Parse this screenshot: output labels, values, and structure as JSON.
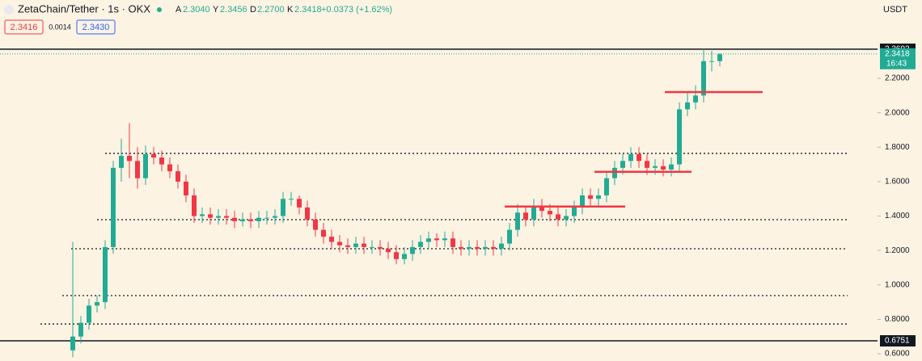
{
  "header": {
    "symbol": "ZetaChain/Tether · 1s · OKX",
    "ohlc": [
      {
        "key": "A",
        "value": "2.3040"
      },
      {
        "key": "Y",
        "value": "2.3456"
      },
      {
        "key": "D",
        "value": "2.2700"
      },
      {
        "key": "K",
        "value": "2.3418"
      }
    ],
    "change": "+0.0373 (+1.62%)",
    "bid": "2.3416",
    "spread": "0.0014",
    "ask": "2.3430",
    "currency": "USDT"
  },
  "chart_data": {
    "type": "candlestick",
    "up_color": "#22ab94",
    "down_color": "#f23645",
    "open": [
      0.62,
      0.7,
      0.78,
      0.88,
      0.9,
      1.22,
      1.68,
      1.75,
      1.72,
      1.62,
      1.76,
      1.74,
      1.7,
      1.66,
      1.6,
      1.52,
      1.4,
      1.41,
      1.39,
      1.4,
      1.39,
      1.37,
      1.38,
      1.37,
      1.39,
      1.39,
      1.4,
      1.5,
      1.5,
      1.45,
      1.38,
      1.32,
      1.28,
      1.25,
      1.23,
      1.22,
      1.24,
      1.22,
      1.22,
      1.21,
      1.19,
      1.15,
      1.18,
      1.22,
      1.25,
      1.27,
      1.26,
      1.27,
      1.22,
      1.21,
      1.22,
      1.21,
      1.22,
      1.21,
      1.24,
      1.32,
      1.42,
      1.38,
      1.46,
      1.43,
      1.41,
      1.38,
      1.4,
      1.45,
      1.52,
      1.5,
      1.52,
      1.62,
      1.68,
      1.72,
      1.76,
      1.72,
      1.68,
      1.69,
      1.67,
      1.7,
      2.02,
      2.06,
      2.1,
      2.3,
      2.3
    ],
    "high": [
      1.25,
      0.82,
      0.92,
      0.94,
      1.26,
      1.72,
      1.85,
      1.94,
      1.8,
      1.81,
      1.8,
      1.78,
      1.74,
      1.7,
      1.64,
      1.56,
      1.45,
      1.45,
      1.44,
      1.44,
      1.43,
      1.42,
      1.42,
      1.43,
      1.43,
      1.44,
      1.54,
      1.54,
      1.52,
      1.49,
      1.42,
      1.36,
      1.32,
      1.29,
      1.27,
      1.28,
      1.28,
      1.26,
      1.26,
      1.25,
      1.23,
      1.22,
      1.26,
      1.29,
      1.31,
      1.3,
      1.31,
      1.31,
      1.26,
      1.26,
      1.26,
      1.26,
      1.26,
      1.28,
      1.36,
      1.47,
      1.46,
      1.5,
      1.5,
      1.47,
      1.45,
      1.44,
      1.49,
      1.56,
      1.56,
      1.56,
      1.66,
      1.72,
      1.76,
      1.8,
      1.8,
      1.76,
      1.73,
      1.73,
      1.74,
      2.06,
      2.12,
      2.16,
      2.3692,
      2.36,
      2.3456
    ],
    "low": [
      0.58,
      0.66,
      0.74,
      0.84,
      0.86,
      1.18,
      1.6,
      1.62,
      1.56,
      1.58,
      1.7,
      1.66,
      1.62,
      1.56,
      1.48,
      1.36,
      1.36,
      1.35,
      1.35,
      1.35,
      1.33,
      1.34,
      1.33,
      1.33,
      1.35,
      1.35,
      1.36,
      1.46,
      1.41,
      1.34,
      1.28,
      1.24,
      1.21,
      1.19,
      1.18,
      1.18,
      1.18,
      1.18,
      1.17,
      1.15,
      1.12,
      1.12,
      1.14,
      1.18,
      1.21,
      1.22,
      1.22,
      1.18,
      1.17,
      1.17,
      1.17,
      1.17,
      1.17,
      1.17,
      1.2,
      1.28,
      1.34,
      1.34,
      1.39,
      1.37,
      1.34,
      1.34,
      1.36,
      1.41,
      1.46,
      1.46,
      1.48,
      1.58,
      1.64,
      1.68,
      1.68,
      1.64,
      1.64,
      1.63,
      1.63,
      1.66,
      1.98,
      2.02,
      2.06,
      2.24,
      2.27
    ],
    "close": [
      0.7,
      0.78,
      0.88,
      0.9,
      1.22,
      1.68,
      1.75,
      1.72,
      1.62,
      1.76,
      1.74,
      1.7,
      1.66,
      1.6,
      1.52,
      1.4,
      1.41,
      1.39,
      1.4,
      1.39,
      1.37,
      1.38,
      1.37,
      1.39,
      1.39,
      1.4,
      1.5,
      1.5,
      1.45,
      1.38,
      1.32,
      1.28,
      1.25,
      1.23,
      1.22,
      1.24,
      1.22,
      1.22,
      1.21,
      1.19,
      1.15,
      1.18,
      1.22,
      1.25,
      1.27,
      1.26,
      1.27,
      1.22,
      1.21,
      1.22,
      1.21,
      1.22,
      1.21,
      1.24,
      1.32,
      1.42,
      1.38,
      1.46,
      1.43,
      1.41,
      1.38,
      1.4,
      1.45,
      1.52,
      1.5,
      1.52,
      1.62,
      1.68,
      1.72,
      1.76,
      1.72,
      1.68,
      1.69,
      1.67,
      1.7,
      2.02,
      2.06,
      2.1,
      2.3,
      2.3,
      2.34
    ],
    "ylim": [
      0.558,
      2.655
    ],
    "yticks": [
      {
        "value": 0.6,
        "label": "0.6000"
      },
      {
        "value": 0.8,
        "label": "0.8000"
      },
      {
        "value": 1.0,
        "label": "1.0000"
      },
      {
        "value": 1.2,
        "label": "1.2000"
      },
      {
        "value": 1.4,
        "label": "1.4000"
      },
      {
        "value": 1.6,
        "label": "1.6000"
      },
      {
        "value": 1.8,
        "label": "1.8000"
      },
      {
        "value": 2.0,
        "label": "2.0000"
      },
      {
        "value": 2.2,
        "label": "2.2000"
      }
    ],
    "dotted_levels": [
      1.764,
      1.379,
      1.21,
      0.938,
      0.773
    ],
    "red_levels": [
      2.12,
      1.657,
      1.455
    ],
    "price_lines": [
      2.3692,
      0.6751
    ],
    "last_price": 2.3418,
    "last_price_label": "2.3418",
    "countdown": "16:43"
  }
}
